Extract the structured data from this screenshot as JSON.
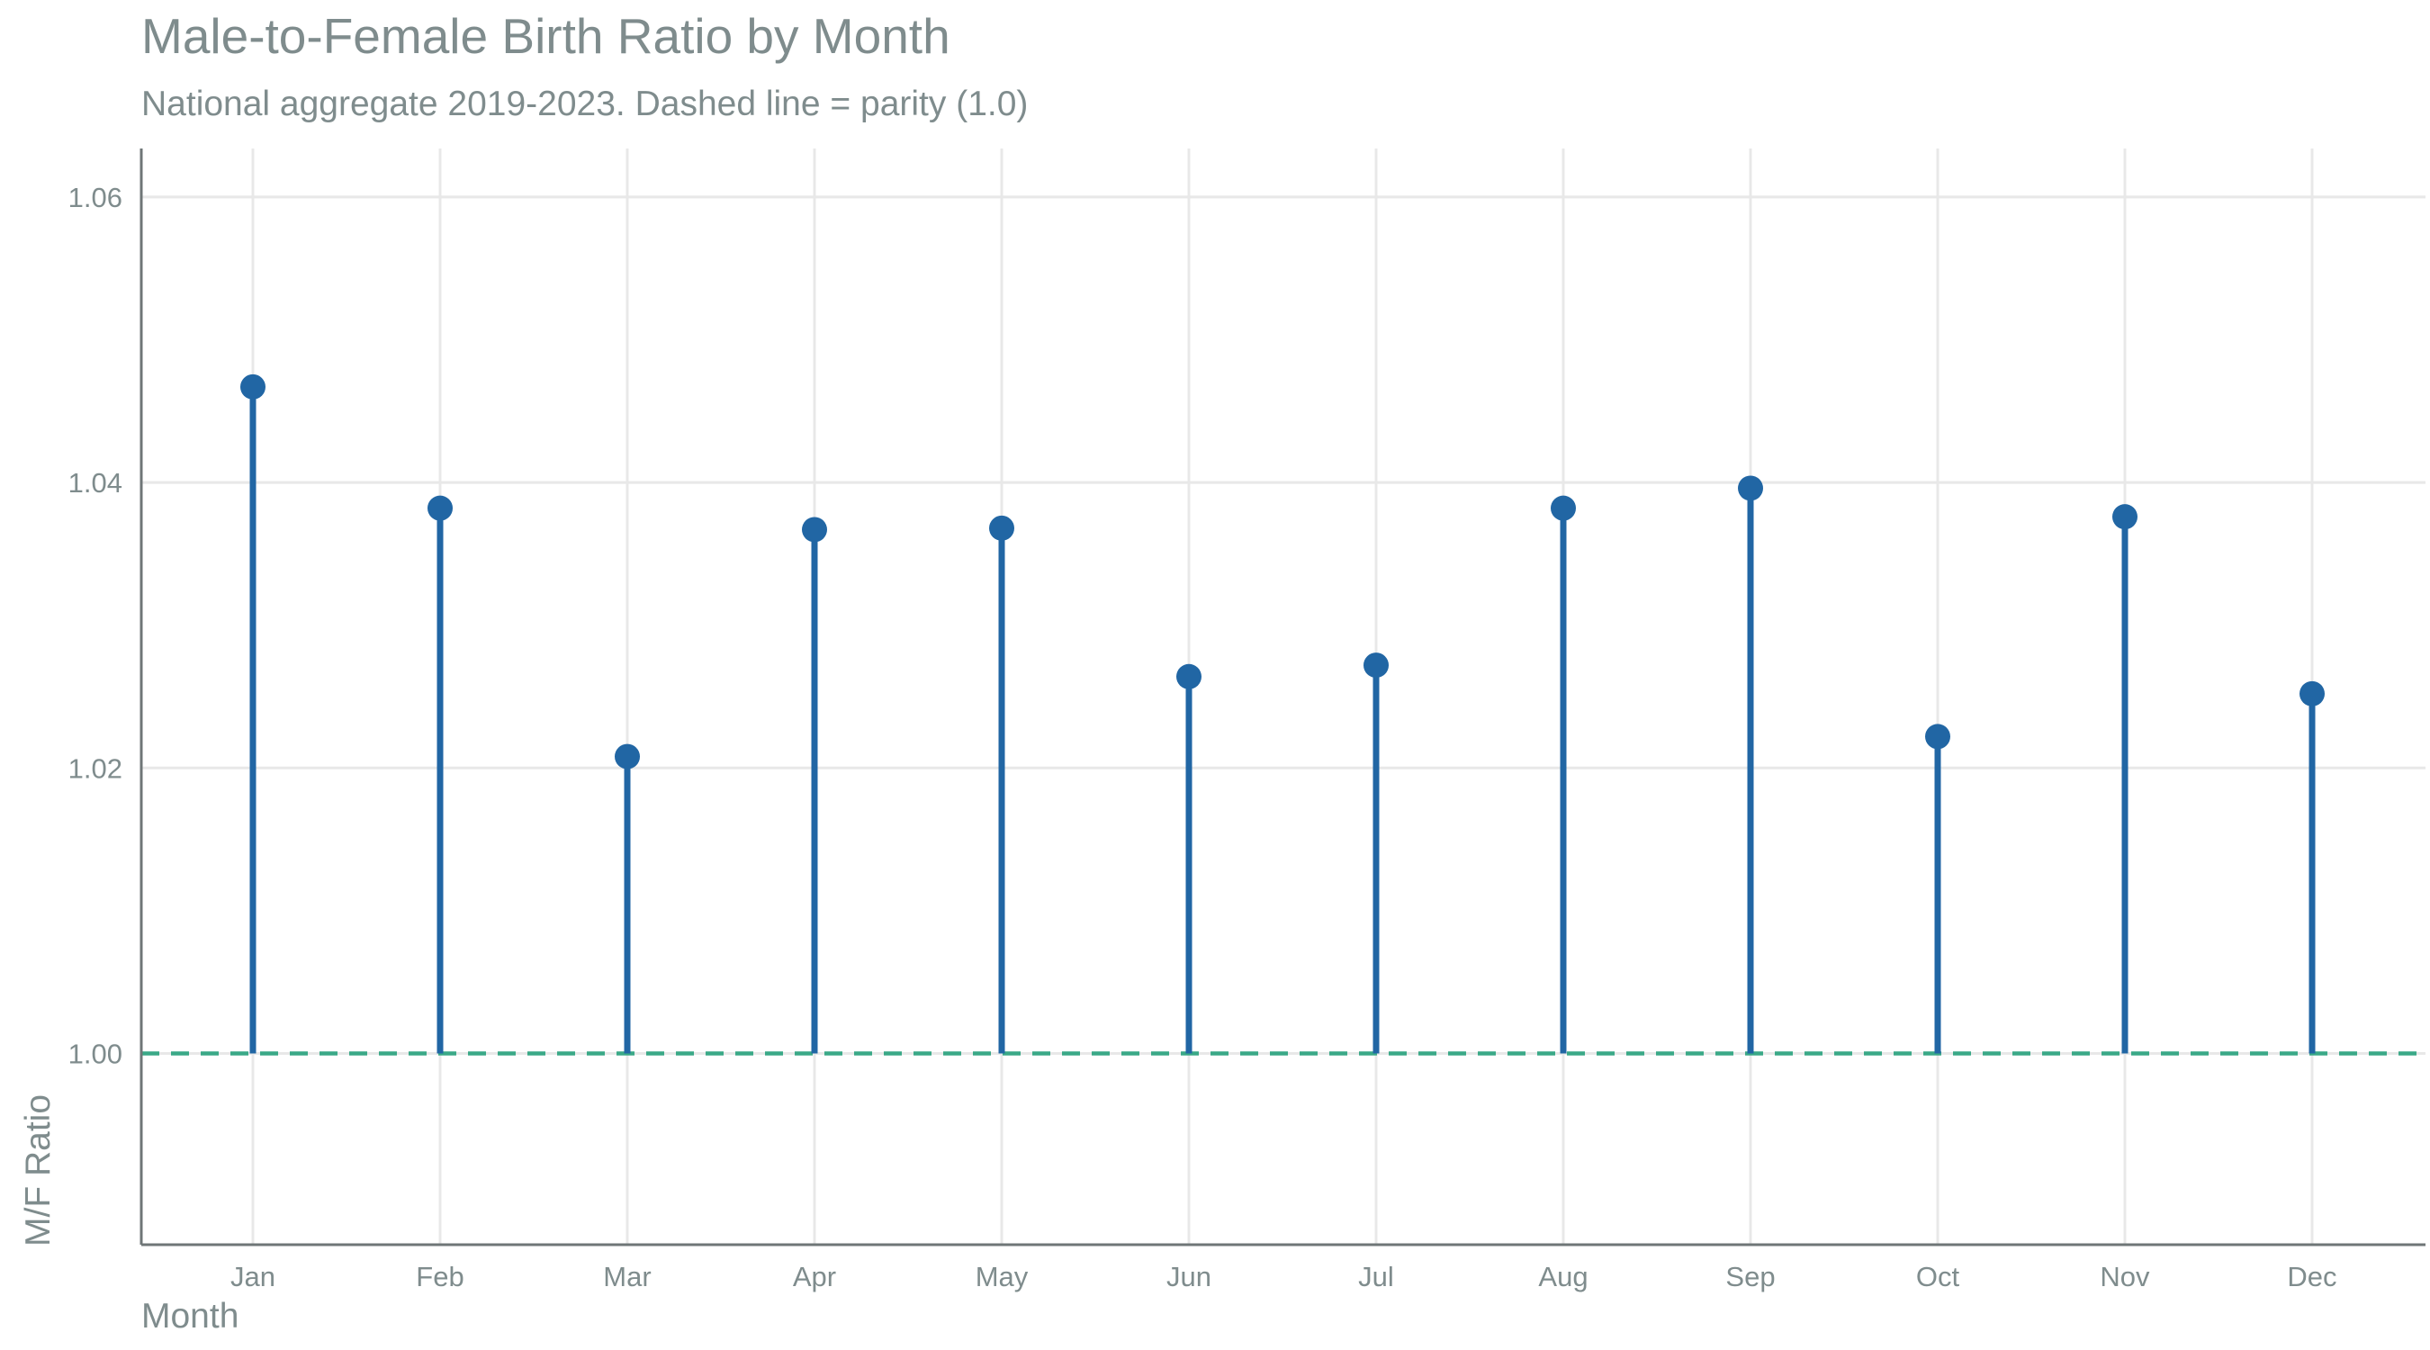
{
  "chart_data": {
    "type": "lollipop",
    "title": "Male-to-Female Birth Ratio by Month",
    "subtitle": "National aggregate 2019-2023. Dashed line = parity (1.0)",
    "xlabel": "Month",
    "ylabel": "M/F Ratio",
    "categories": [
      "Jan",
      "Feb",
      "Mar",
      "Apr",
      "May",
      "Jun",
      "Jul",
      "Aug",
      "Sep",
      "Oct",
      "Nov",
      "Dec"
    ],
    "values": [
      1.0467,
      1.0382,
      1.0208,
      1.0367,
      1.0368,
      1.0264,
      1.0272,
      1.0382,
      1.0396,
      1.0222,
      1.0376,
      1.0252
    ],
    "baseline": 1.0,
    "ylim": [
      0.9866,
      1.0634
    ],
    "yticks": [
      1.0,
      1.02,
      1.04,
      1.06
    ],
    "ytick_labels": [
      "1.00",
      "1.02",
      "1.04",
      "1.06"
    ],
    "grid": true,
    "colors": {
      "stem": "#2166a4",
      "point": "#2166a4",
      "parity_line": "#3aa987",
      "grid": "#e8e8e8",
      "axis": "#6f7677",
      "text": "#7f8c8d"
    }
  }
}
